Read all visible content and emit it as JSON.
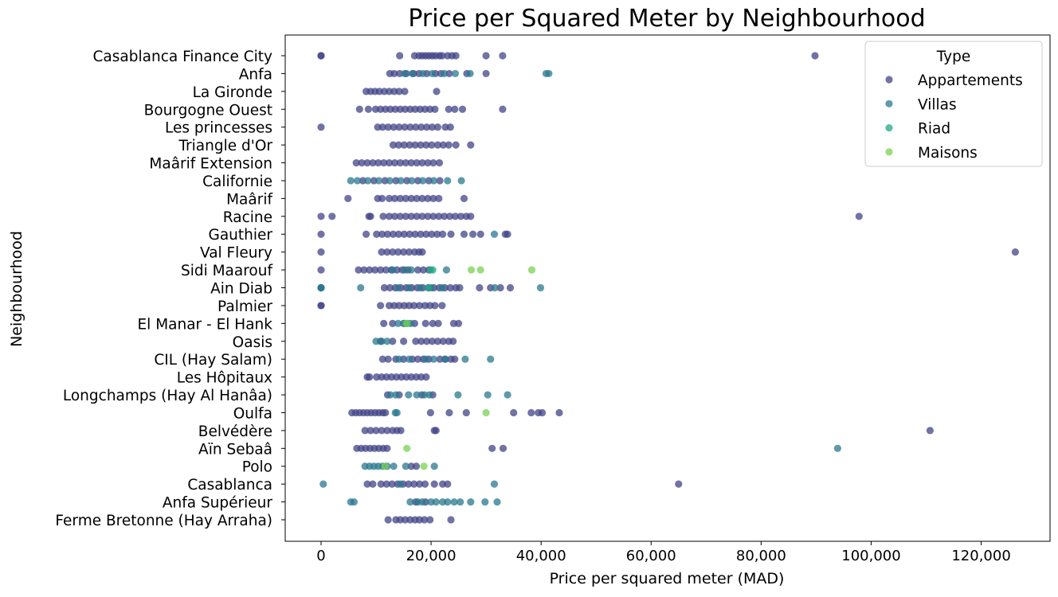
{
  "chart_data": {
    "type": "scatter",
    "title": "Price per Squared Meter by Neighbourhood",
    "xlabel": "Price per squared meter (MAD)",
    "ylabel": "Neighbourhood",
    "xlim": [
      -6500,
      132000
    ],
    "xticks": [
      0,
      20000,
      40000,
      60000,
      80000,
      100000,
      120000
    ],
    "xtick_labels": [
      "0",
      "20,000",
      "40,000",
      "60,000",
      "80,000",
      "100,000",
      "120,000"
    ],
    "grid": false,
    "legend": {
      "title": "Type",
      "placement": "top-right",
      "entries": [
        {
          "name": "Appartements",
          "color": "#414487"
        },
        {
          "name": "Villas",
          "color": "#2a788e"
        },
        {
          "name": "Riad",
          "color": "#22a884"
        },
        {
          "name": "Maisons",
          "color": "#7ad151"
        }
      ]
    },
    "categories": [
      "Casablanca Finance City",
      "Anfa",
      "La Gironde",
      "Bourgogne Ouest",
      "Les princesses",
      "Triangle d'Or",
      "Maârif Extension",
      "Californie",
      "Maârif",
      "Racine",
      "Gauthier",
      "Val Fleury",
      "Sidi Maarouf",
      "Ain Diab",
      "Palmier",
      "El Manar - El Hank",
      "Oasis",
      "CIL (Hay Salam)",
      "Les Hôpitaux",
      "Longchamps (Hay Al Hanâa)",
      "Oulfa",
      "Belvédère",
      "Aïn Sebaâ",
      "Polo",
      "Casablanca",
      "Anfa Supérieur",
      "Ferme Bretonne (Hay Arraha)"
    ],
    "series": [
      {
        "name": "Appartements",
        "color": "#414487",
        "points": [
          {
            "cat": "Casablanca Finance City",
            "x": [
              0,
              0,
              14300,
              17000,
              17800,
              18400,
              19000,
              19600,
              20200,
              20800,
              21500,
              22000,
              23000,
              23800,
              24500,
              30000,
              33000,
              89800
            ]
          },
          {
            "cat": "Anfa",
            "x": [
              12500,
              13300,
              14300,
              15500,
              16800,
              17800,
              19200,
              20800,
              21800,
              23300,
              26500,
              30000
            ]
          },
          {
            "cat": "La Gironde",
            "x": [
              8200,
              9000,
              9800,
              10600,
              11500,
              12400,
              13300,
              14200,
              15200,
              21000
            ]
          },
          {
            "cat": "Bourgogne Ouest",
            "x": [
              7000,
              8600,
              9900,
              10800,
              11700,
              12600,
              13500,
              14400,
              15300,
              16200,
              17100,
              18000,
              18900,
              19800,
              20700,
              23200,
              24300,
              25700,
              33000
            ]
          },
          {
            "cat": "Les princesses",
            "x": [
              0,
              10300,
              11200,
              12200,
              13200,
              14200,
              15200,
              16200,
              17200,
              18200,
              19200,
              20200,
              21200,
              22600,
              23500
            ]
          },
          {
            "cat": "Triangle d'Or",
            "x": [
              13100,
              14100,
              15100,
              16100,
              17100,
              18100,
              19100,
              20100,
              21200,
              22200,
              23200,
              24500,
              27200
            ]
          },
          {
            "cat": "Maârif Extension",
            "x": [
              6400,
              7400,
              8400,
              9400,
              10400,
              11400,
              12400,
              13400,
              14400,
              15400,
              16400,
              17400,
              18400,
              19400,
              20400,
              21500
            ]
          },
          {
            "cat": "Californie",
            "x": [
              7600,
              9600,
              11600,
              13600,
              15600,
              17600,
              19600,
              21600
            ]
          },
          {
            "cat": "Maârif",
            "x": [
              4900,
              10300,
              11100,
              12400,
              13400,
              14400,
              15400,
              16400,
              17400,
              18400,
              19400,
              20400,
              21400,
              26000
            ]
          },
          {
            "cat": "Racine",
            "x": [
              0,
              2000,
              8700,
              9000,
              11300,
              12400,
              13400,
              14400,
              15400,
              16400,
              17400,
              18400,
              19400,
              20400,
              21400,
              22400,
              23400,
              24400,
              25400,
              26400,
              27200,
              97800
            ]
          },
          {
            "cat": "Gauthier",
            "x": [
              0,
              8200,
              10100,
              11100,
              12100,
              13100,
              14100,
              15100,
              16100,
              17100,
              18100,
              19100,
              20100,
              21100,
              22100,
              23600,
              26000,
              27600,
              29000,
              33500,
              33900
            ]
          },
          {
            "cat": "Val Fleury",
            "x": [
              0,
              11000,
              12000,
              13000,
              14000,
              15000,
              16000,
              17000,
              17800,
              18400,
              126200
            ]
          },
          {
            "cat": "Sidi Maarouf",
            "x": [
              0,
              6800,
              7800,
              8800,
              9800,
              10800,
              11800,
              12800,
              13800,
              14800,
              15800,
              17600,
              18600,
              19600
            ]
          },
          {
            "cat": "Ain Diab",
            "x": [
              0,
              11500,
              12500,
              13500,
              14500,
              15500,
              16500,
              17500,
              18500,
              19500,
              20500,
              21500,
              22500,
              23500,
              24500,
              25200,
              28800,
              30800,
              32600,
              34400
            ]
          },
          {
            "cat": "Palmier",
            "x": [
              0,
              0,
              10800,
              12400,
              13300,
              14200,
              15100,
              16000,
              16900,
              17900,
              18900,
              19800,
              20700,
              22000
            ]
          },
          {
            "cat": "El Manar - El Hank",
            "x": [
              11400,
              13000,
              15000,
              17000,
              19000,
              20300,
              21300,
              24100,
              25000
            ]
          },
          {
            "cat": "Oasis",
            "x": [
              10800,
              13000,
              15000,
              17200,
              18200,
              19200,
              20200,
              21200,
              22200,
              23200,
              24000
            ]
          },
          {
            "cat": "CIL (Hay Salam)",
            "x": [
              11200,
              12200,
              13600,
              15000,
              16600,
              17600,
              18600,
              19600,
              21600,
              22600,
              23600,
              24300
            ]
          },
          {
            "cat": "Les Hôpitaux",
            "x": [
              8400,
              8800,
              10100,
              11000,
              11900,
              12800,
              13700,
              14600,
              15500,
              16400,
              17300,
              18200,
              19100
            ]
          },
          {
            "cat": "Longchamps (Hay Al Hanâa)",
            "x": [
              12100,
              14200,
              18300,
              20300
            ]
          },
          {
            "cat": "Oulfa",
            "x": [
              5600,
              6300,
              7000,
              7700,
              8400,
              9100,
              9800,
              10500,
              11200,
              11700,
              19900,
              23300,
              26400,
              35000,
              38200,
              39500,
              40200,
              43300
            ]
          },
          {
            "cat": "Belvédère",
            "x": [
              8000,
              9000,
              10000,
              11000,
              12000,
              13000,
              13800,
              14500,
              20600,
              20900,
              110700
            ]
          },
          {
            "cat": "Aïn Sebaâ",
            "x": [
              6500,
              7300,
              8100,
              8900,
              9700,
              10500,
              11300,
              12000,
              31100,
              33100
            ]
          },
          {
            "cat": "Polo",
            "x": [
              16400,
              17300
            ]
          },
          {
            "cat": "Casablanca",
            "x": [
              8400,
              9400,
              10900,
              11900,
              12900,
              13900,
              14900,
              15900,
              16900,
              17900,
              18900,
              20600,
              22100,
              23000,
              65000
            ]
          },
          {
            "cat": "Anfa Supérieur",
            "x": [
              17200,
              19000
            ]
          },
          {
            "cat": "Ferme Bretonne (Hay Arraha)",
            "x": [
              12200,
              13600,
              14400,
              15300,
              16200,
              17100,
              17900,
              18800,
              19800,
              23600
            ]
          }
        ]
      },
      {
        "name": "Villas",
        "color": "#2a788e",
        "points": [
          {
            "cat": "Anfa",
            "x": [
              15200,
              16600,
              18500,
              20200,
              22400,
              24400,
              27100,
              40900,
              41400
            ]
          },
          {
            "cat": "Californie",
            "x": [
              5400,
              6600,
              8500,
              10500,
              12500,
              14500,
              16500,
              18500,
              20500,
              23000,
              25500
            ]
          },
          {
            "cat": "Gauthier",
            "x": [
              31500
            ]
          },
          {
            "cat": "Sidi Maarouf",
            "x": [
              13000,
              15200,
              16400,
              22800
            ]
          },
          {
            "cat": "Ain Diab",
            "x": [
              0,
              0,
              7200,
              14000,
              16000,
              18000,
              20000,
              22000,
              31600,
              39900
            ]
          },
          {
            "cat": "El Manar - El Hank",
            "x": [
              14000,
              15700,
              16300
            ]
          },
          {
            "cat": "Oasis",
            "x": [
              10000,
              11000,
              12000
            ]
          },
          {
            "cat": "CIL (Hay Salam)",
            "x": [
              14200,
              16000,
              19000,
              20500,
              22500,
              26200,
              30800
            ]
          },
          {
            "cat": "Longchamps (Hay Al Hanâa)",
            "x": [
              12600,
              13600,
              15900,
              17400,
              18800,
              19700,
              24900,
              30300,
              33900
            ]
          },
          {
            "cat": "Oulfa",
            "x": [
              13500,
              13800
            ]
          },
          {
            "cat": "Aïn Sebaâ",
            "x": [
              93900
            ]
          },
          {
            "cat": "Polo",
            "x": [
              8000,
              8800,
              9600,
              10400,
              11200,
              12000,
              13200,
              15400,
              20600
            ]
          },
          {
            "cat": "Casablanca",
            "x": [
              400,
              14400,
              31500
            ]
          },
          {
            "cat": "Anfa Supérieur",
            "x": [
              5400,
              6000,
              16200,
              17600,
              18400,
              20000,
              20900,
              22100,
              23000,
              24200,
              25300,
              27200,
              29800,
              32000
            ]
          }
        ]
      },
      {
        "name": "Riad",
        "color": "#22a884",
        "points": [
          {
            "cat": "Sidi Maarouf",
            "x": [
              19900,
              20300
            ]
          },
          {
            "cat": "Ain Diab",
            "x": [
              19500
            ]
          },
          {
            "cat": "El Manar - El Hank",
            "x": [
              15300
            ]
          }
        ]
      },
      {
        "name": "Maisons",
        "color": "#7ad151",
        "points": [
          {
            "cat": "Sidi Maarouf",
            "x": [
              27300,
              29000,
              38300
            ]
          },
          {
            "cat": "El Manar - El Hank",
            "x": [
              15600
            ]
          },
          {
            "cat": "Oulfa",
            "x": [
              30000
            ]
          },
          {
            "cat": "Aïn Sebaâ",
            "x": [
              15600
            ]
          },
          {
            "cat": "Polo",
            "x": [
              11600,
              18700
            ]
          }
        ]
      }
    ]
  }
}
